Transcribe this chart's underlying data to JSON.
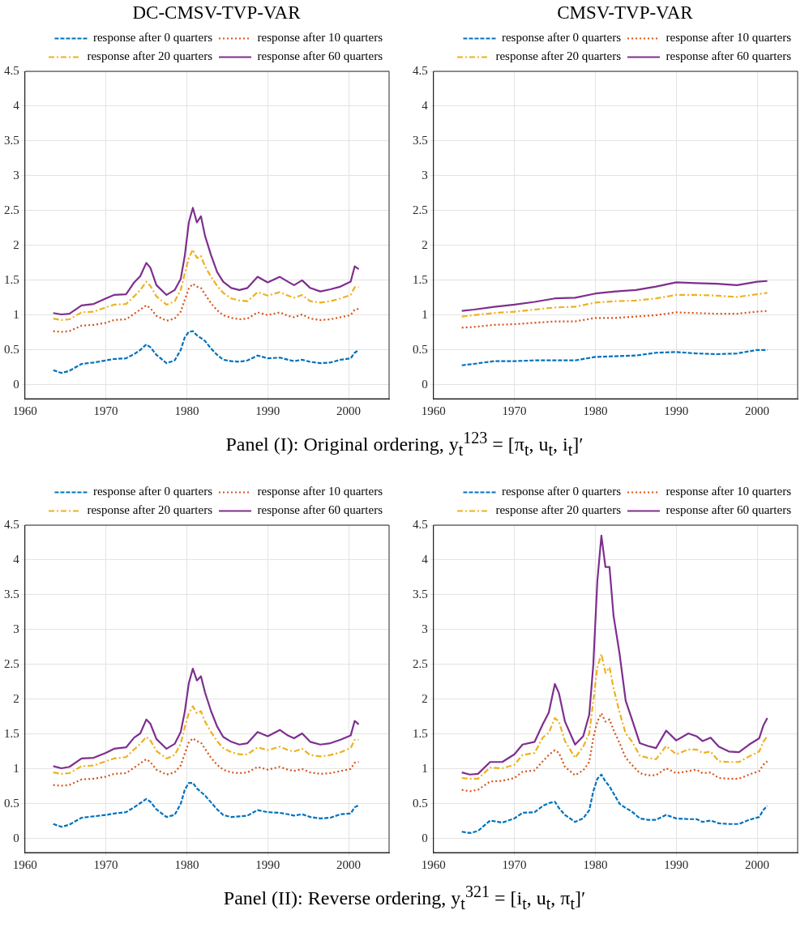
{
  "chart_data": [
    {
      "type": "line",
      "title": "DC-CMSV-TVP-VAR",
      "x": [
        1963.5,
        1964.5,
        1965.5,
        1967,
        1968.5,
        1970,
        1971,
        1972.5,
        1973.5,
        1974.25,
        1975,
        1975.5,
        1976.25,
        1977.5,
        1978.5,
        1979.25,
        1979.75,
        1980.25,
        1980.75,
        1981.25,
        1981.75,
        1982.25,
        1983,
        1983.75,
        1984.5,
        1985.5,
        1986.5,
        1987.5,
        1988.75,
        1990,
        1991.5,
        1992.5,
        1993.25,
        1994.25,
        1995.25,
        1996.5,
        1997.75,
        1999,
        2000.25,
        2000.75,
        2001.25
      ],
      "series": [
        {
          "name": "response after 0 quarters",
          "color": "#0072bd",
          "line_style": "dashed",
          "values": [
            0.21,
            0.17,
            0.2,
            0.3,
            0.32,
            0.35,
            0.37,
            0.38,
            0.44,
            0.5,
            0.58,
            0.54,
            0.43,
            0.31,
            0.35,
            0.5,
            0.68,
            0.76,
            0.77,
            0.71,
            0.67,
            0.63,
            0.52,
            0.43,
            0.36,
            0.34,
            0.33,
            0.35,
            0.42,
            0.38,
            0.39,
            0.36,
            0.34,
            0.36,
            0.33,
            0.31,
            0.32,
            0.36,
            0.38,
            0.46,
            0.5
          ]
        },
        {
          "name": "response after 10 quarters",
          "color": "#d95319",
          "line_style": "dotted",
          "values": [
            0.77,
            0.76,
            0.77,
            0.85,
            0.86,
            0.89,
            0.93,
            0.94,
            1.02,
            1.08,
            1.14,
            1.1,
            0.99,
            0.92,
            0.95,
            1.05,
            1.22,
            1.38,
            1.45,
            1.41,
            1.39,
            1.3,
            1.17,
            1.07,
            1.0,
            0.96,
            0.94,
            0.95,
            1.04,
            1.0,
            1.04,
            0.99,
            0.97,
            1.01,
            0.95,
            0.93,
            0.94,
            0.97,
            1.0,
            1.08,
            1.09
          ]
        },
        {
          "name": "response after 20 quarters",
          "color": "#edb120",
          "line_style": "dashdot",
          "values": [
            0.95,
            0.93,
            0.94,
            1.04,
            1.05,
            1.11,
            1.15,
            1.16,
            1.27,
            1.36,
            1.48,
            1.42,
            1.27,
            1.15,
            1.2,
            1.36,
            1.6,
            1.82,
            1.94,
            1.82,
            1.85,
            1.7,
            1.55,
            1.42,
            1.32,
            1.24,
            1.21,
            1.2,
            1.33,
            1.28,
            1.33,
            1.28,
            1.25,
            1.29,
            1.2,
            1.18,
            1.2,
            1.24,
            1.29,
            1.4,
            1.4
          ]
        },
        {
          "name": "response after 60 quarters",
          "color": "#7e2f8e",
          "line_style": "solid",
          "values": [
            1.03,
            1.01,
            1.02,
            1.14,
            1.16,
            1.24,
            1.29,
            1.3,
            1.47,
            1.56,
            1.75,
            1.68,
            1.43,
            1.29,
            1.36,
            1.52,
            1.85,
            2.33,
            2.54,
            2.33,
            2.42,
            2.14,
            1.86,
            1.62,
            1.48,
            1.39,
            1.36,
            1.39,
            1.55,
            1.47,
            1.55,
            1.48,
            1.43,
            1.5,
            1.39,
            1.34,
            1.37,
            1.41,
            1.48,
            1.7,
            1.66
          ]
        }
      ],
      "xlim": [
        1960,
        2005
      ],
      "xticks": [
        1960,
        1970,
        1980,
        1990,
        2000
      ],
      "ylim": [
        -0.2,
        4.5
      ],
      "yticks": [
        0,
        0.5,
        1,
        1.5,
        2,
        2.5,
        3,
        3.5,
        4,
        4.5
      ],
      "grid": true,
      "legend": "top right",
      "annotations": [
        "Panel (I): Original ordering, y$_{t}$$^{123}$ = [π$_{t}$, u$_{t}$, i$_{t}$]′"
      ]
    },
    {
      "type": "line",
      "title": "CMSV-TVP-VAR",
      "x": [
        1963.5,
        1965,
        1967.5,
        1970,
        1972.5,
        1975,
        1977.5,
        1980,
        1982.5,
        1985,
        1987.5,
        1990,
        1992.5,
        1995,
        1997.5,
        2000,
        2001.25
      ],
      "series": [
        {
          "name": "response after 0 quarters",
          "color": "#0072bd",
          "line_style": "dashed",
          "values": [
            0.28,
            0.3,
            0.34,
            0.34,
            0.35,
            0.35,
            0.35,
            0.4,
            0.41,
            0.42,
            0.46,
            0.47,
            0.45,
            0.44,
            0.45,
            0.5,
            0.5
          ]
        },
        {
          "name": "response after 10 quarters",
          "color": "#d95319",
          "line_style": "dotted",
          "values": [
            0.82,
            0.83,
            0.86,
            0.87,
            0.89,
            0.91,
            0.91,
            0.96,
            0.96,
            0.98,
            1.0,
            1.04,
            1.03,
            1.02,
            1.02,
            1.05,
            1.06
          ]
        },
        {
          "name": "response after 20 quarters",
          "color": "#edb120",
          "line_style": "dashdot",
          "values": [
            0.98,
            1.0,
            1.03,
            1.05,
            1.08,
            1.11,
            1.12,
            1.18,
            1.2,
            1.21,
            1.24,
            1.29,
            1.29,
            1.28,
            1.26,
            1.3,
            1.32
          ]
        },
        {
          "name": "response after 60 quarters",
          "color": "#7e2f8e",
          "line_style": "solid",
          "values": [
            1.06,
            1.08,
            1.12,
            1.15,
            1.19,
            1.24,
            1.25,
            1.31,
            1.34,
            1.36,
            1.41,
            1.47,
            1.46,
            1.45,
            1.43,
            1.48,
            1.49
          ]
        }
      ],
      "xlim": [
        1960,
        2005
      ],
      "xticks": [
        1960,
        1970,
        1980,
        1990,
        2000
      ],
      "ylim": [
        -0.2,
        4.5
      ],
      "yticks": [
        0,
        0.5,
        1,
        1.5,
        2,
        2.5,
        3,
        3.5,
        4,
        4.5
      ],
      "grid": true,
      "legend": "top right"
    },
    {
      "type": "line",
      "x": [
        1963.5,
        1964.5,
        1965.5,
        1967,
        1968.5,
        1970,
        1971,
        1972.5,
        1973.5,
        1974.25,
        1975,
        1975.5,
        1976.25,
        1977.5,
        1978.5,
        1979.25,
        1979.75,
        1980.25,
        1980.75,
        1981.25,
        1981.75,
        1982.25,
        1983,
        1983.75,
        1984.5,
        1985.5,
        1986.5,
        1987.5,
        1988.75,
        1990,
        1991.5,
        1992.5,
        1993.25,
        1994.25,
        1995.25,
        1996.5,
        1997.75,
        1999,
        2000.25,
        2000.75,
        2001.25
      ],
      "series": [
        {
          "name": "response after 0 quarters",
          "color": "#0072bd",
          "line_style": "dashed",
          "values": [
            0.21,
            0.17,
            0.2,
            0.3,
            0.32,
            0.34,
            0.36,
            0.38,
            0.45,
            0.51,
            0.57,
            0.53,
            0.42,
            0.31,
            0.34,
            0.5,
            0.7,
            0.8,
            0.8,
            0.72,
            0.67,
            0.62,
            0.52,
            0.42,
            0.34,
            0.31,
            0.32,
            0.33,
            0.41,
            0.38,
            0.37,
            0.35,
            0.33,
            0.35,
            0.31,
            0.29,
            0.3,
            0.35,
            0.36,
            0.45,
            0.48
          ]
        },
        {
          "name": "response after 10 quarters",
          "color": "#d95319",
          "line_style": "dotted",
          "values": [
            0.77,
            0.76,
            0.77,
            0.85,
            0.86,
            0.89,
            0.93,
            0.94,
            1.02,
            1.08,
            1.14,
            1.1,
            0.99,
            0.92,
            0.95,
            1.05,
            1.22,
            1.38,
            1.44,
            1.4,
            1.38,
            1.29,
            1.16,
            1.06,
            0.99,
            0.95,
            0.94,
            0.95,
            1.03,
            0.99,
            1.03,
            0.99,
            0.97,
            1.0,
            0.95,
            0.93,
            0.94,
            0.97,
            1.0,
            1.09,
            1.1
          ]
        },
        {
          "name": "response after 20 quarters",
          "color": "#edb120",
          "line_style": "dashdot",
          "values": [
            0.95,
            0.93,
            0.94,
            1.04,
            1.05,
            1.11,
            1.15,
            1.17,
            1.28,
            1.36,
            1.46,
            1.41,
            1.26,
            1.15,
            1.2,
            1.36,
            1.6,
            1.8,
            1.9,
            1.8,
            1.83,
            1.68,
            1.53,
            1.4,
            1.3,
            1.24,
            1.21,
            1.21,
            1.31,
            1.27,
            1.32,
            1.27,
            1.25,
            1.29,
            1.2,
            1.18,
            1.2,
            1.24,
            1.3,
            1.42,
            1.42
          ]
        },
        {
          "name": "response after 60 quarters",
          "color": "#7e2f8e",
          "line_style": "solid",
          "values": [
            1.04,
            1.01,
            1.03,
            1.15,
            1.16,
            1.23,
            1.29,
            1.31,
            1.45,
            1.51,
            1.71,
            1.65,
            1.43,
            1.29,
            1.36,
            1.53,
            1.82,
            2.23,
            2.44,
            2.27,
            2.33,
            2.1,
            1.83,
            1.61,
            1.46,
            1.39,
            1.35,
            1.37,
            1.53,
            1.47,
            1.56,
            1.48,
            1.44,
            1.51,
            1.39,
            1.35,
            1.37,
            1.42,
            1.48,
            1.69,
            1.64
          ]
        }
      ],
      "xlim": [
        1960,
        2005
      ],
      "xticks": [
        1960,
        1970,
        1980,
        1990,
        2000
      ],
      "ylim": [
        -0.2,
        4.5
      ],
      "yticks": [
        0,
        0.5,
        1,
        1.5,
        2,
        2.5,
        3,
        3.5,
        4,
        4.5
      ],
      "grid": true,
      "legend": "top right",
      "annotations": [
        "Panel (II): Reverse ordering, y$_{t}$$^{321}$ = [i$_{t}$, u$_{t}$, π$_{t}$]′"
      ]
    },
    {
      "type": "line",
      "x": [
        1963.5,
        1964.5,
        1965.5,
        1967,
        1968.5,
        1970,
        1971,
        1972.5,
        1973.5,
        1974.25,
        1975,
        1975.5,
        1976.25,
        1977.5,
        1978.5,
        1979.25,
        1979.75,
        1980.25,
        1980.75,
        1981.25,
        1981.75,
        1982.25,
        1983,
        1983.75,
        1984.5,
        1985.5,
        1986.5,
        1987.5,
        1988.75,
        1990,
        1991.5,
        1992.5,
        1993.25,
        1994.25,
        1995.25,
        1996.5,
        1997.75,
        1999,
        2000.25,
        2000.75,
        2001.25
      ],
      "series": [
        {
          "name": "response after 0 quarters",
          "color": "#0072bd",
          "line_style": "dashed",
          "values": [
            0.1,
            0.08,
            0.11,
            0.26,
            0.23,
            0.29,
            0.37,
            0.38,
            0.47,
            0.51,
            0.53,
            0.44,
            0.34,
            0.24,
            0.29,
            0.41,
            0.68,
            0.86,
            0.92,
            0.82,
            0.75,
            0.65,
            0.5,
            0.44,
            0.39,
            0.29,
            0.27,
            0.27,
            0.34,
            0.29,
            0.28,
            0.28,
            0.24,
            0.26,
            0.22,
            0.21,
            0.21,
            0.27,
            0.31,
            0.41,
            0.47
          ]
        },
        {
          "name": "response after 10 quarters",
          "color": "#d95319",
          "line_style": "dotted",
          "values": [
            0.7,
            0.68,
            0.7,
            0.82,
            0.83,
            0.87,
            0.96,
            0.98,
            1.11,
            1.2,
            1.27,
            1.23,
            1.03,
            0.91,
            0.98,
            1.1,
            1.45,
            1.68,
            1.8,
            1.68,
            1.71,
            1.56,
            1.37,
            1.16,
            1.06,
            0.94,
            0.91,
            0.91,
            1.01,
            0.94,
            0.97,
            0.99,
            0.94,
            0.95,
            0.87,
            0.86,
            0.86,
            0.92,
            0.97,
            1.06,
            1.11
          ]
        },
        {
          "name": "response after 20 quarters",
          "color": "#edb120",
          "line_style": "dashdot",
          "values": [
            0.87,
            0.86,
            0.86,
            1.02,
            1.01,
            1.06,
            1.2,
            1.23,
            1.45,
            1.52,
            1.73,
            1.68,
            1.4,
            1.16,
            1.32,
            1.51,
            1.98,
            2.46,
            2.65,
            2.38,
            2.46,
            2.16,
            1.81,
            1.51,
            1.4,
            1.19,
            1.16,
            1.14,
            1.33,
            1.21,
            1.28,
            1.28,
            1.23,
            1.25,
            1.11,
            1.1,
            1.1,
            1.18,
            1.25,
            1.39,
            1.47
          ]
        },
        {
          "name": "response after 60 quarters",
          "color": "#7e2f8e",
          "line_style": "solid",
          "values": [
            0.95,
            0.92,
            0.93,
            1.1,
            1.1,
            1.21,
            1.35,
            1.39,
            1.64,
            1.81,
            2.22,
            2.09,
            1.68,
            1.35,
            1.47,
            1.78,
            2.5,
            3.7,
            4.35,
            3.9,
            3.9,
            3.2,
            2.65,
            1.98,
            1.72,
            1.37,
            1.33,
            1.3,
            1.55,
            1.41,
            1.51,
            1.47,
            1.4,
            1.45,
            1.32,
            1.25,
            1.24,
            1.35,
            1.44,
            1.62,
            1.73
          ]
        }
      ],
      "xlim": [
        1960,
        2005
      ],
      "xticks": [
        1960,
        1970,
        1980,
        1990,
        2000
      ],
      "ylim": [
        -0.2,
        4.5
      ],
      "yticks": [
        0,
        0.5,
        1,
        1.5,
        2,
        2.5,
        3,
        3.5,
        4,
        4.5
      ],
      "grid": true,
      "legend": "top right"
    }
  ]
}
